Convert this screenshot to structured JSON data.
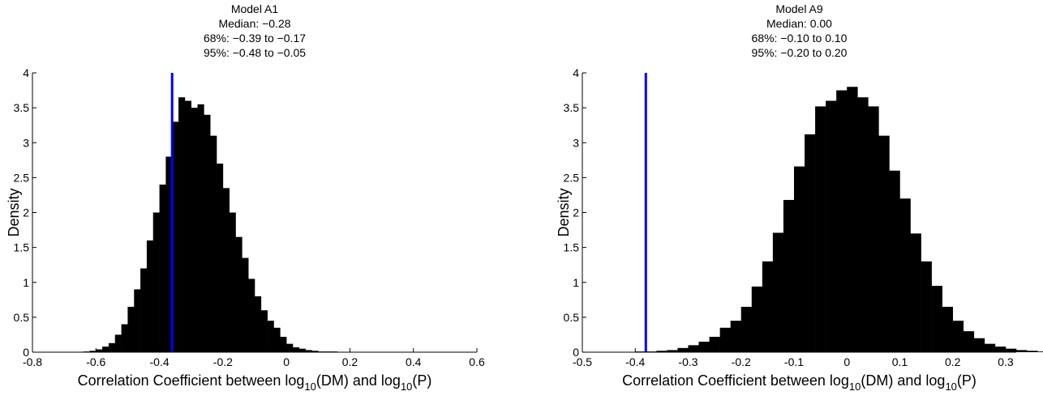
{
  "chart_data": [
    {
      "type": "histogram",
      "title": "Model A1",
      "subtitle": [
        "Median: −0.28",
        "68%: −0.39 to −0.17",
        "95%: −0.48 to −0.05"
      ],
      "xlabel": [
        "Correlation Coefficient between log",
        "10",
        "(DM) and log",
        "10",
        "(P)"
      ],
      "ylabel": "Density",
      "bins": [
        -0.64,
        -0.62,
        -0.6,
        -0.58,
        -0.56,
        -0.54,
        -0.52,
        -0.5,
        -0.48,
        -0.46,
        -0.44,
        -0.42,
        -0.4,
        -0.38,
        -0.36,
        -0.34,
        -0.32,
        -0.3,
        -0.28,
        -0.26,
        -0.24,
        -0.22,
        -0.2,
        -0.18,
        -0.16,
        -0.14,
        -0.12,
        -0.1,
        -0.08,
        -0.06,
        -0.04,
        -0.02,
        0,
        0.02,
        0.04,
        0.06,
        0.08,
        0.1,
        0.12,
        0.14,
        0.16
      ],
      "values": [
        0.01,
        0.02,
        0.04,
        0.08,
        0.13,
        0.25,
        0.4,
        0.65,
        0.9,
        1.2,
        1.6,
        2.0,
        2.4,
        2.8,
        3.3,
        3.65,
        3.6,
        3.5,
        3.55,
        3.4,
        3.1,
        2.7,
        2.35,
        2.0,
        1.65,
        1.35,
        1.05,
        0.8,
        0.6,
        0.45,
        0.35,
        0.22,
        0.12,
        0.07,
        0.05,
        0.03,
        0.02,
        0.01,
        0.01,
        0.01
      ],
      "color": "#000000",
      "reference_line": {
        "x": -0.36,
        "color": "#0000ff"
      },
      "xlim": [
        -0.8,
        0.6
      ],
      "xticks": [
        -0.8,
        -0.6,
        -0.4,
        -0.2,
        0,
        0.2,
        0.4,
        0.6
      ],
      "ylim": [
        0,
        4
      ],
      "yticks": [
        0,
        0.5,
        1,
        1.5,
        2,
        2.5,
        3,
        3.5,
        4
      ]
    },
    {
      "type": "histogram",
      "title": "Model A9",
      "subtitle": [
        "Median: 0.00",
        "68%: −0.10 to 0.10",
        "95%: −0.20 to 0.20"
      ],
      "xlabel": [
        "Correlation Coefficient between log",
        "10",
        "(DM) and log",
        "10",
        "(P)"
      ],
      "ylabel": "Density",
      "bins": [
        -0.4,
        -0.38,
        -0.36,
        -0.34,
        -0.32,
        -0.3,
        -0.28,
        -0.26,
        -0.24,
        -0.22,
        -0.2,
        -0.18,
        -0.16,
        -0.14,
        -0.12,
        -0.1,
        -0.08,
        -0.06,
        -0.04,
        -0.02,
        0,
        0.02,
        0.04,
        0.06,
        0.08,
        0.1,
        0.12,
        0.14,
        0.16,
        0.18,
        0.2,
        0.22,
        0.24,
        0.26,
        0.28,
        0.3,
        0.32,
        0.34,
        0.36,
        0.38
      ],
      "values": [
        0.01,
        0.01,
        0.02,
        0.03,
        0.06,
        0.1,
        0.15,
        0.22,
        0.35,
        0.45,
        0.65,
        0.94,
        1.3,
        1.71,
        2.18,
        2.66,
        3.12,
        3.52,
        3.6,
        3.75,
        3.8,
        3.65,
        3.52,
        3.1,
        2.6,
        2.2,
        1.7,
        1.3,
        0.95,
        0.65,
        0.45,
        0.3,
        0.2,
        0.12,
        0.08,
        0.05,
        0.03,
        0.02,
        0.01
      ],
      "color": "#000000",
      "reference_line": {
        "x": -0.38,
        "color": "#0000ff"
      },
      "xlim": [
        -0.5,
        0.32
      ],
      "xticks": [
        -0.5,
        -0.4,
        -0.3,
        -0.2,
        -0.1,
        0,
        0.1,
        0.2,
        0.3
      ],
      "ylim": [
        0,
        4
      ],
      "yticks": [
        0,
        0.5,
        1,
        1.5,
        2,
        2.5,
        3,
        3.5,
        4
      ]
    }
  ]
}
